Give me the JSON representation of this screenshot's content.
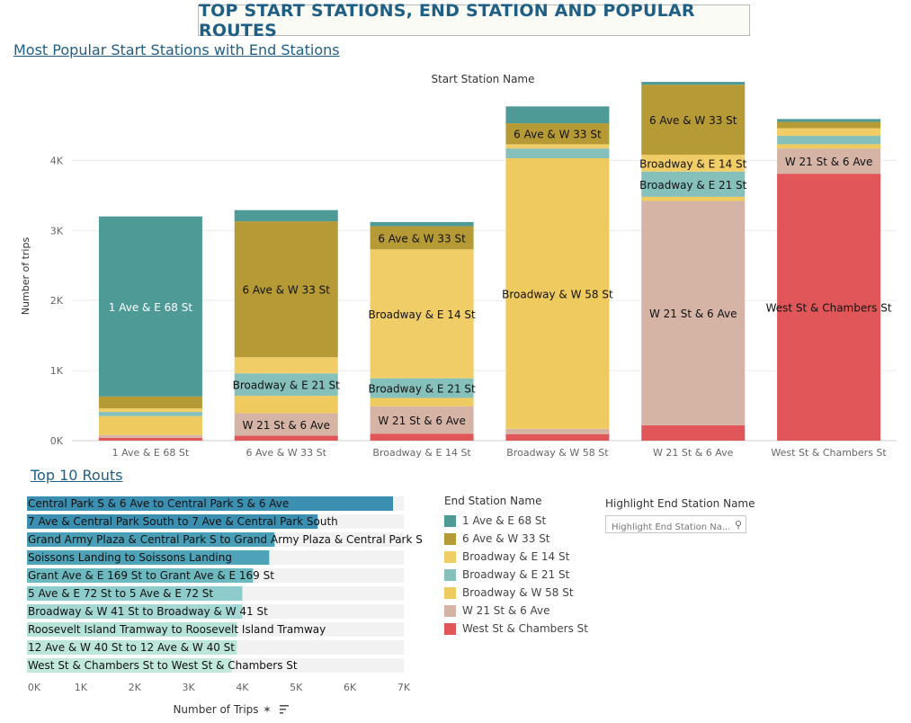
{
  "dashboard_title": "TOP START STATIONS, END STATION AND POPULAR ROUTES",
  "section1_title": "Most Popular Start Stations with End Stations",
  "section2_title": "Top 10 Routs",
  "legend": {
    "title": "End Station Name",
    "items": [
      {
        "label": "1 Ave & E 68 St",
        "color": "#4e9a96"
      },
      {
        "label": "6 Ave & W 33 St",
        "color": "#b59a35"
      },
      {
        "label": "Broadway & E 14 St",
        "color": "#f0cd66"
      },
      {
        "label": "Broadway & E 21 St",
        "color": "#86c0bb"
      },
      {
        "label": "Broadway & W 58 St",
        "color": "#efca5f"
      },
      {
        "label": "W 21 St & 6 Ave",
        "color": "#d5b4a6"
      },
      {
        "label": "West St & Chambers St",
        "color": "#e15759"
      }
    ]
  },
  "highlight": {
    "title": "Highlight End Station Name",
    "placeholder": "Highlight End Station Na...",
    "icon": "search-icon"
  },
  "chart_data": [
    {
      "type": "bar",
      "stacked": true,
      "title": "Start Station Name",
      "ylabel": "Number of trips",
      "ylim": [
        0,
        4800
      ],
      "yticks": [
        0,
        1000,
        2000,
        3000,
        4000
      ],
      "ytick_labels": [
        "0K",
        "1K",
        "2K",
        "3K",
        "4K"
      ],
      "grid": true,
      "categories": [
        "1 Ave & E 68 St",
        "6 Ave & W 33 St",
        "Broadway & E 14 St",
        "Broadway & W 58 St",
        "W 21 St & 6 Ave",
        "West St & Chambers St"
      ],
      "series": [
        {
          "name": "West St & Chambers St",
          "color": "#e15759",
          "values": [
            40,
            70,
            100,
            90,
            220,
            3810
          ]
        },
        {
          "name": "W 21 St & 6 Ave",
          "color": "#d5b4a6",
          "values": [
            40,
            320,
            390,
            80,
            3200,
            360
          ]
        },
        {
          "name": "Broadway & W 58 St",
          "color": "#efca5f",
          "values": [
            270,
            250,
            120,
            3860,
            60,
            60
          ]
        },
        {
          "name": "Broadway & E 21 St",
          "color": "#86c0bb",
          "values": [
            60,
            320,
            280,
            140,
            360,
            120
          ]
        },
        {
          "name": "Broadway & E 14 St",
          "color": "#f0cd66",
          "values": [
            50,
            230,
            1840,
            60,
            240,
            110
          ]
        },
        {
          "name": "6 Ave & W 33 St",
          "color": "#b59a35",
          "values": [
            170,
            1940,
            330,
            300,
            1000,
            90
          ]
        },
        {
          "name": "1 Ave & E 68 St",
          "color": "#4e9a96",
          "values": [
            2570,
            160,
            60,
            240,
            40,
            40
          ]
        }
      ],
      "annotations": [
        {
          "category": 0,
          "series": "1 Ave & E 68 St",
          "text": "1 Ave & E 68 St",
          "color": "#ffffff"
        },
        {
          "category": 1,
          "series": "6 Ave & W 33 St",
          "text": "6 Ave & W 33 St",
          "color": "#111111"
        },
        {
          "category": 1,
          "series": "Broadway & E 21 St",
          "text": "Broadway & E 21 St",
          "color": "#111111"
        },
        {
          "category": 1,
          "series": "W 21 St & 6 Ave",
          "text": "W 21 St & 6 Ave",
          "color": "#111111"
        },
        {
          "category": 2,
          "series": "6 Ave & W 33 St",
          "text": "6 Ave & W 33 St",
          "color": "#111111"
        },
        {
          "category": 2,
          "series": "Broadway & E 14 St",
          "text": "Broadway & E 14 St",
          "color": "#111111"
        },
        {
          "category": 2,
          "series": "Broadway & E 21 St",
          "text": "Broadway & E 21 St",
          "color": "#111111"
        },
        {
          "category": 2,
          "series": "W 21 St & 6 Ave",
          "text": "W 21 St & 6 Ave",
          "color": "#111111"
        },
        {
          "category": 3,
          "series": "6 Ave & W 33 St",
          "text": "6 Ave & W 33 St",
          "color": "#111111"
        },
        {
          "category": 3,
          "series": "Broadway & W 58 St",
          "text": "Broadway & W 58 St",
          "color": "#111111"
        },
        {
          "category": 4,
          "series": "6 Ave & W 33 St",
          "text": "6 Ave & W 33 St",
          "color": "#111111"
        },
        {
          "category": 4,
          "series": "Broadway & E 14 St",
          "text": "Broadway & E 14 St",
          "color": "#111111"
        },
        {
          "category": 4,
          "series": "Broadway & E 21 St",
          "text": "Broadway & E 21 St",
          "color": "#111111"
        },
        {
          "category": 4,
          "series": "W 21 St & 6 Ave",
          "text": "W 21 St & 6 Ave",
          "color": "#111111"
        },
        {
          "category": 5,
          "series": "W 21 St & 6 Ave",
          "text": "W 21 St & 6 Ave",
          "color": "#111111"
        },
        {
          "category": 5,
          "series": "West St & Chambers St",
          "text": "West St & Chambers St",
          "color": "#111111"
        }
      ]
    },
    {
      "type": "bar",
      "orientation": "horizontal",
      "xlabel": "Number of Trips",
      "xlim": [
        0,
        7000
      ],
      "xticks": [
        0,
        1000,
        2000,
        3000,
        4000,
        5000,
        6000,
        7000
      ],
      "xtick_labels": [
        "0K",
        "1K",
        "2K",
        "3K",
        "4K",
        "5K",
        "6K",
        "7K"
      ],
      "categories": [
        "Central Park S & 6 Ave to Central Park S & 6 Ave",
        "7 Ave & Central Park South to 7 Ave & Central Park South",
        "Grand Army Plaza & Central Park S to Grand Army Plaza & Central Park S",
        "Soissons Landing to Soissons Landing",
        "Grant Ave & E 169 St to Grant Ave & E 169 St",
        " 5 Ave & E 72 St to 5 Ave & E 72 St",
        "Broadway & W 41 St to Broadway & W 41 St",
        "Roosevelt Island Tramway to Roosevelt Island Tramway",
        "12 Ave & W 40 St to 12 Ave & W 40 St",
        "West St & Chambers St to West St & Chambers St"
      ],
      "values": [
        6800,
        5400,
        4600,
        4500,
        4200,
        4000,
        4000,
        3900,
        3900,
        3800
      ],
      "colors": [
        "#3b8fb0",
        "#3b8fb0",
        "#4a9fb8",
        "#4ea3b8",
        "#6cb9c0",
        "#8ecbcb",
        "#a5d8d2",
        "#b6e2d8",
        "#bde6da",
        "#c3e9dd"
      ],
      "toolbar_icons": [
        "pin-icon",
        "sort-icon"
      ]
    }
  ]
}
